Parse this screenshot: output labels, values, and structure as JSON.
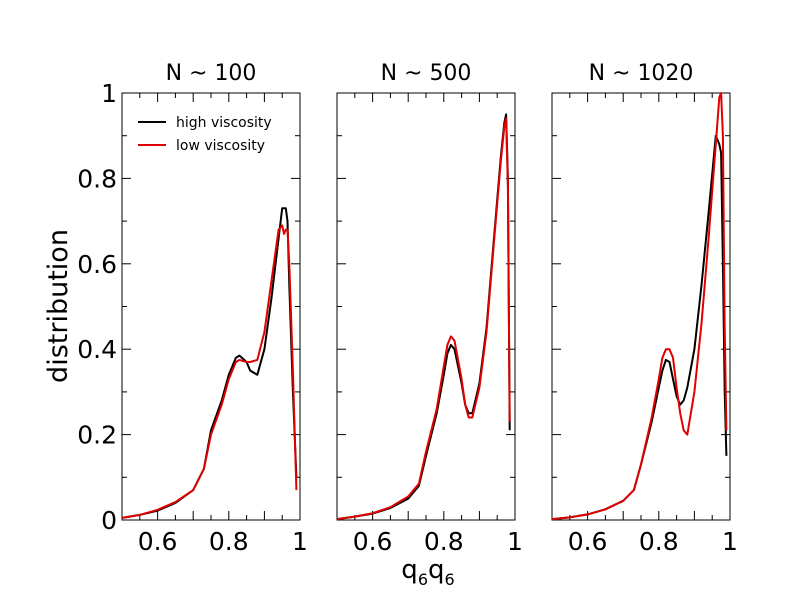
{
  "chart_data": {
    "type": "line",
    "ylabel": "distribution",
    "xlabel": {
      "base": "q",
      "sub": "6",
      "text": "q6q6"
    },
    "xlim": [
      0.5,
      1.0
    ],
    "ylim": [
      0,
      1.0
    ],
    "x_ticks": [
      0.6,
      0.8,
      1.0
    ],
    "x_tick_labels": [
      "0.6",
      "0.8",
      "1"
    ],
    "y_ticks": [
      0,
      0.2,
      0.4,
      0.6,
      0.8,
      1.0
    ],
    "y_tick_labels": [
      "0",
      "0.2",
      "0.4",
      "0.6",
      "0.8",
      "1"
    ],
    "legend": {
      "placement": "top-left of first panel",
      "entries": [
        {
          "name": "high viscosity",
          "color": "#000000"
        },
        {
          "name": "low viscosity",
          "color": "#e00000"
        }
      ]
    },
    "panels": [
      {
        "title": "N ~ 100",
        "series": [
          {
            "name": "high viscosity",
            "color": "#000000",
            "x": [
              0.5,
              0.55,
              0.6,
              0.65,
              0.7,
              0.73,
              0.75,
              0.78,
              0.8,
              0.82,
              0.83,
              0.85,
              0.86,
              0.88,
              0.9,
              0.92,
              0.94,
              0.95,
              0.96,
              0.965,
              0.97,
              0.98,
              0.99
            ],
            "y": [
              0.005,
              0.012,
              0.022,
              0.04,
              0.07,
              0.12,
              0.21,
              0.28,
              0.34,
              0.38,
              0.385,
              0.37,
              0.35,
              0.34,
              0.4,
              0.52,
              0.66,
              0.73,
              0.73,
              0.7,
              0.55,
              0.3,
              0.1
            ]
          },
          {
            "name": "low viscosity",
            "color": "#e00000",
            "x": [
              0.5,
              0.55,
              0.6,
              0.65,
              0.7,
              0.73,
              0.75,
              0.78,
              0.8,
              0.82,
              0.83,
              0.85,
              0.86,
              0.88,
              0.9,
              0.92,
              0.94,
              0.95,
              0.955,
              0.96,
              0.965,
              0.97,
              0.98,
              0.99
            ],
            "y": [
              0.005,
              0.012,
              0.024,
              0.042,
              0.07,
              0.12,
              0.2,
              0.27,
              0.33,
              0.37,
              0.375,
              0.37,
              0.37,
              0.375,
              0.44,
              0.56,
              0.68,
              0.69,
              0.67,
              0.68,
              0.68,
              0.6,
              0.35,
              0.07
            ]
          }
        ]
      },
      {
        "title": "N ~ 500",
        "series": [
          {
            "name": "high viscosity",
            "color": "#000000",
            "x": [
              0.5,
              0.55,
              0.6,
              0.65,
              0.7,
              0.73,
              0.75,
              0.78,
              0.8,
              0.81,
              0.82,
              0.83,
              0.85,
              0.86,
              0.87,
              0.88,
              0.9,
              0.92,
              0.94,
              0.96,
              0.97,
              0.975,
              0.98,
              0.985
            ],
            "y": [
              0.002,
              0.008,
              0.015,
              0.028,
              0.05,
              0.08,
              0.15,
              0.25,
              0.34,
              0.39,
              0.41,
              0.4,
              0.32,
              0.27,
              0.25,
              0.25,
              0.32,
              0.45,
              0.65,
              0.85,
              0.93,
              0.95,
              0.8,
              0.21
            ]
          },
          {
            "name": "low viscosity",
            "color": "#e00000",
            "x": [
              0.5,
              0.55,
              0.6,
              0.65,
              0.7,
              0.73,
              0.75,
              0.78,
              0.8,
              0.81,
              0.82,
              0.83,
              0.85,
              0.86,
              0.87,
              0.88,
              0.9,
              0.92,
              0.94,
              0.96,
              0.97,
              0.975,
              0.98,
              0.985
            ],
            "y": [
              0.002,
              0.008,
              0.016,
              0.03,
              0.055,
              0.085,
              0.16,
              0.26,
              0.36,
              0.41,
              0.43,
              0.42,
              0.33,
              0.27,
              0.24,
              0.24,
              0.31,
              0.44,
              0.64,
              0.84,
              0.92,
              0.94,
              0.78,
              0.23
            ]
          }
        ]
      },
      {
        "title": "N ~ 1020",
        "series": [
          {
            "name": "high viscosity",
            "color": "#000000",
            "x": [
              0.5,
              0.55,
              0.6,
              0.65,
              0.7,
              0.73,
              0.75,
              0.78,
              0.8,
              0.81,
              0.82,
              0.83,
              0.84,
              0.85,
              0.86,
              0.87,
              0.88,
              0.9,
              0.92,
              0.94,
              0.96,
              0.97,
              0.975,
              0.98,
              0.985,
              0.99
            ],
            "y": [
              0.002,
              0.006,
              0.013,
              0.025,
              0.045,
              0.07,
              0.13,
              0.23,
              0.31,
              0.35,
              0.375,
              0.37,
              0.33,
              0.29,
              0.27,
              0.28,
              0.31,
              0.4,
              0.55,
              0.72,
              0.9,
              0.88,
              0.86,
              0.6,
              0.3,
              0.15
            ]
          },
          {
            "name": "low viscosity",
            "color": "#e00000",
            "x": [
              0.5,
              0.55,
              0.6,
              0.65,
              0.7,
              0.73,
              0.75,
              0.78,
              0.8,
              0.81,
              0.82,
              0.83,
              0.84,
              0.85,
              0.86,
              0.87,
              0.88,
              0.9,
              0.92,
              0.94,
              0.96,
              0.97,
              0.975,
              0.98,
              0.985,
              0.99
            ],
            "y": [
              0.002,
              0.006,
              0.013,
              0.025,
              0.045,
              0.07,
              0.13,
              0.24,
              0.33,
              0.38,
              0.4,
              0.4,
              0.38,
              0.31,
              0.25,
              0.21,
              0.2,
              0.3,
              0.46,
              0.66,
              0.88,
              0.99,
              1.0,
              0.9,
              0.45,
              0.21
            ]
          }
        ]
      }
    ]
  }
}
